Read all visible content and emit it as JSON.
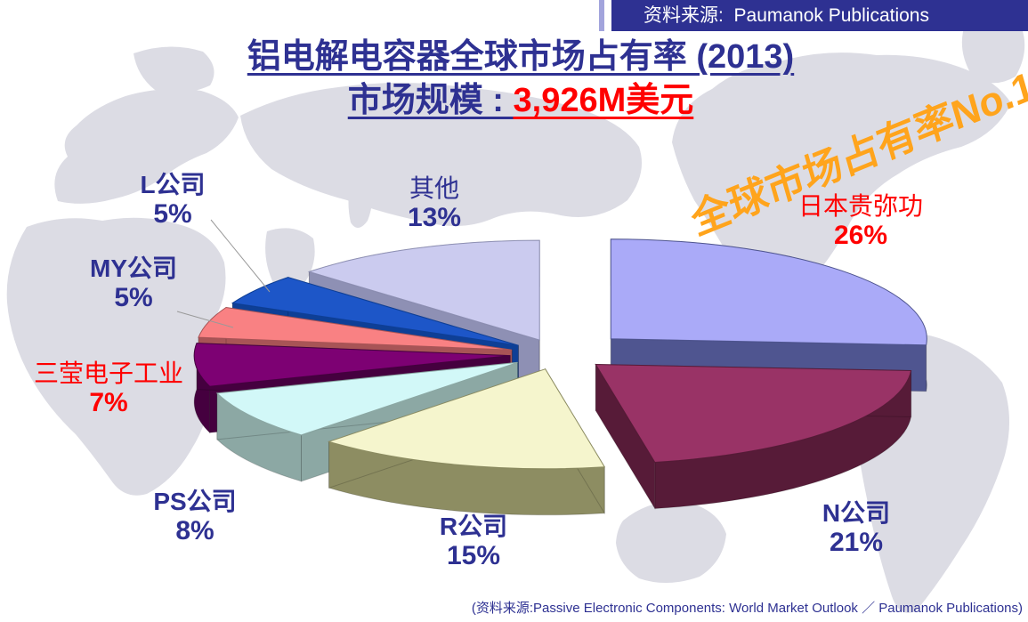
{
  "banner": {
    "source_label": "资料来源:",
    "source_value": "Paumanok Publications"
  },
  "title": {
    "line1": "铝电解电容器全球市场占有率 (2013)",
    "line2_label": "市场规模 : ",
    "line2_value": "3,926M美元"
  },
  "stamp_text": "全球市场占有率No.1!!",
  "footer_text": "(资料来源:Passive Electronic Components: World Market Outlook ／ Paumanok Publications)",
  "colors": {
    "title_blue": "#2E3192",
    "value_red": "#FF0000",
    "stamp_orange": "#FFA41C",
    "banner_bg": "#2E3192",
    "banner_text": "#FFFFFF",
    "banner_stripe": "#A2A4DC",
    "map_gray": "#DCDCE4",
    "leader_line_gray": "#999999"
  },
  "chart_data": {
    "type": "pie",
    "style": "3d-exploded",
    "title": "铝电解电容器全球市场占有率 (2013)",
    "subtitle": "市场规模 : 3,926M美元",
    "year": "2013",
    "market_size": "3,926M美元",
    "units": "percent market share",
    "start_angle_deg": 0,
    "clockwise": true,
    "slices": [
      {
        "label": "日本贵弥功",
        "pct_label": "26%",
        "value": 26,
        "label_color": "#FF0000",
        "top_color": "#AAAAF8",
        "side_color": "#4F5590"
      },
      {
        "label": "N公司",
        "pct_label": "21%",
        "value": 21,
        "label_color": "#2E3192",
        "top_color": "#993366",
        "side_color": "#571B38"
      },
      {
        "label": "R公司",
        "pct_label": "15%",
        "value": 15,
        "label_color": "#2E3192",
        "top_color": "#F5F5CD",
        "side_color": "#8D8D62"
      },
      {
        "label": "PS公司",
        "pct_label": "8%",
        "value": 8,
        "label_color": "#2E3192",
        "top_color": "#D2F8F8",
        "side_color": "#8CA8A4"
      },
      {
        "label": "三莹电子工业",
        "pct_label": "7%",
        "value": 7,
        "label_color": "#FF0000",
        "top_color": "#7D0173",
        "side_color": "#45003F"
      },
      {
        "label": "MY公司",
        "pct_label": "5%",
        "value": 5,
        "label_color": "#2E3192",
        "top_color": "#F98183",
        "side_color": "#A85456"
      },
      {
        "label": "L公司",
        "pct_label": "5%",
        "value": 5,
        "label_color": "#2E3192",
        "top_color": "#1D56C8",
        "side_color": "#0E3F96"
      },
      {
        "label": "其他",
        "pct_label": "13%",
        "value": 13,
        "label_color": "#2E3192",
        "top_color": "#CBCBEF",
        "side_color": "#8E90B4"
      }
    ]
  }
}
